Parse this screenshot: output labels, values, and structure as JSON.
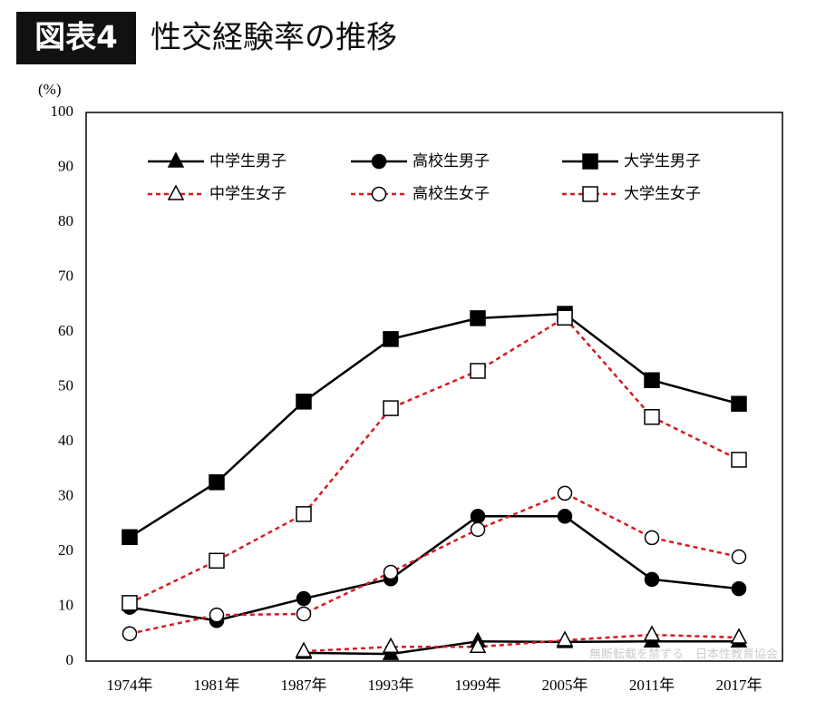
{
  "chart_data": {
    "type": "line",
    "title_badge": "図表4",
    "title": "性交経験率の推移",
    "y_unit": "(%)",
    "watermark": "無断転載を禁ずる　日本性教育協会",
    "categories": [
      "1974年",
      "1981年",
      "1987年",
      "1993年",
      "1999年",
      "2005年",
      "2011年",
      "2017年"
    ],
    "ylim": [
      0,
      100
    ],
    "yticks": [
      0,
      10,
      20,
      30,
      40,
      50,
      60,
      70,
      80,
      90,
      100
    ],
    "grid": false,
    "legend": "top",
    "series": [
      {
        "name": "中学生男子",
        "color": "#000000",
        "line_style": "solid",
        "marker": "triangle",
        "marker_fill": "filled",
        "values": [
          null,
          null,
          1.5,
          1.3,
          3.6,
          3.5,
          3.6,
          3.6
        ]
      },
      {
        "name": "高校生男子",
        "color": "#000000",
        "line_style": "solid",
        "marker": "circle",
        "marker_fill": "filled",
        "values": [
          9.8,
          7.4,
          11.4,
          15.0,
          26.4,
          26.4,
          14.9,
          13.2
        ]
      },
      {
        "name": "大学生男子",
        "color": "#000000",
        "line_style": "solid",
        "marker": "square",
        "marker_fill": "filled",
        "values": [
          22.6,
          32.6,
          47.3,
          58.7,
          62.5,
          63.3,
          51.2,
          46.9
        ]
      },
      {
        "name": "中学生女子",
        "color": "#d7191f",
        "line_style": "dashed",
        "marker": "triangle",
        "marker_fill": "open",
        "values": [
          null,
          null,
          1.8,
          2.6,
          2.6,
          3.8,
          4.8,
          4.3
        ]
      },
      {
        "name": "高校生女子",
        "color": "#d7191f",
        "line_style": "dashed",
        "marker": "circle",
        "marker_fill": "open",
        "values": [
          5.0,
          8.4,
          8.6,
          16.2,
          24.0,
          30.6,
          22.5,
          19.0
        ]
      },
      {
        "name": "大学生女子",
        "color": "#d7191f",
        "line_style": "dashed",
        "marker": "square",
        "marker_fill": "open",
        "values": [
          10.6,
          18.3,
          26.8,
          46.1,
          52.9,
          62.6,
          44.5,
          36.7
        ]
      }
    ]
  }
}
